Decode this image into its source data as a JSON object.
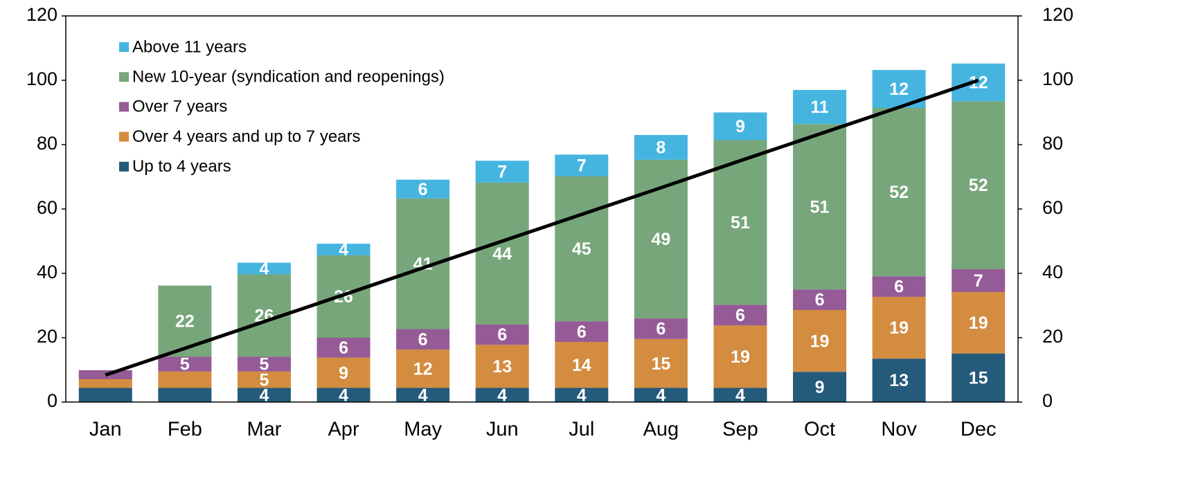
{
  "chart_data": {
    "type": "bar",
    "stacked": true,
    "categories": [
      "Jan",
      "Feb",
      "Mar",
      "Apr",
      "May",
      "Jun",
      "Jul",
      "Aug",
      "Sep",
      "Oct",
      "Nov",
      "Dec"
    ],
    "series": [
      {
        "name": "Up to 4 years",
        "color": "#245a7a",
        "values": [
          4.4,
          4.4,
          4.4,
          4.4,
          4.4,
          4.4,
          4.4,
          4.4,
          4.4,
          9.4,
          13.5,
          15.1
        ],
        "value_labels": [
          null,
          null,
          "4",
          "4",
          "4",
          "4",
          "4",
          "4",
          "4",
          "9",
          "13",
          "15"
        ]
      },
      {
        "name": "Over 4 years and up to 7 years",
        "color": "#d38c40",
        "values": [
          2.7,
          5.1,
          5.1,
          9.4,
          11.9,
          13.4,
          14.3,
          15.2,
          19.4,
          19.2,
          19.2,
          19.1
        ],
        "value_labels": [
          null,
          null,
          "5",
          "9",
          "12",
          "13",
          "14",
          "15",
          "19",
          "19",
          "19",
          "19"
        ]
      },
      {
        "name": "Over 7 years",
        "color": "#955b96",
        "values": [
          2.8,
          4.6,
          4.6,
          6.2,
          6.4,
          6.3,
          6.4,
          6.4,
          6.4,
          6.4,
          6.4,
          7.1
        ],
        "value_labels": [
          null,
          "5",
          "5",
          "6",
          "6",
          "6",
          "6",
          "6",
          "6",
          "6",
          "6",
          "7"
        ]
      },
      {
        "name": "New 10-year (syndication and reopenings)",
        "color": "#77a67b",
        "values": [
          0,
          22.1,
          25.6,
          25.6,
          40.6,
          44.1,
          45.1,
          49.3,
          51.2,
          51.4,
          52.3,
          52.2
        ],
        "value_labels": [
          null,
          "22",
          "26",
          "26",
          "41",
          "44",
          "45",
          "49",
          "51",
          "51",
          "52",
          "52"
        ]
      },
      {
        "name": "Above 11 years",
        "color": "#45b5e0",
        "values": [
          0,
          0,
          3.6,
          3.6,
          5.8,
          6.8,
          6.7,
          7.7,
          8.6,
          10.6,
          11.8,
          11.7
        ],
        "value_labels": [
          null,
          null,
          "4",
          "4",
          "6",
          "7",
          "7",
          "8",
          "9",
          "11",
          "12",
          "12"
        ]
      }
    ],
    "line": {
      "color": "#000000",
      "values": [
        8.4,
        16.7,
        25.0,
        33.3,
        41.7,
        50.0,
        58.3,
        66.6,
        75.0,
        83.3,
        91.6,
        100
      ]
    },
    "ylim": [
      0,
      120
    ],
    "yticks": [
      0,
      20,
      40,
      60,
      80,
      100,
      120
    ],
    "y2lim": [
      0,
      120
    ],
    "y2ticks": [
      0,
      20,
      40,
      60,
      80,
      100,
      120
    ],
    "legend": "upper left"
  }
}
